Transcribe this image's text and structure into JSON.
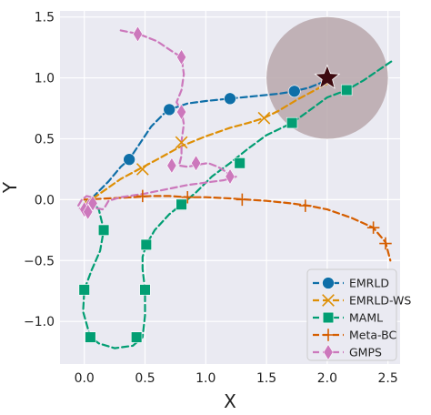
{
  "chart_data": {
    "type": "line",
    "xlabel": "X",
    "ylabel": "Y",
    "xlim": [
      -0.2,
      2.6
    ],
    "ylim": [
      -1.35,
      1.55
    ],
    "xticks": [
      0.0,
      0.5,
      1.0,
      1.5,
      2.0,
      2.5
    ],
    "xtick_labels": [
      "0.0",
      "0.5",
      "1.0",
      "1.5",
      "2.0",
      "2.5"
    ],
    "yticks": [
      -1.0,
      -0.5,
      0.0,
      0.5,
      1.0,
      1.5
    ],
    "ytick_labels": [
      "−1.0",
      "−0.5",
      "0.0",
      "0.5",
      "1.0",
      "1.5"
    ],
    "grid": true,
    "background": "#eaeaf2",
    "legend_position": "bottom-right",
    "goal": {
      "x": 2.0,
      "y": 1.0,
      "radius": 0.5,
      "fill": "#b9a7ab",
      "marker": "star",
      "marker_color": "#3d0a10"
    },
    "series": [
      {
        "name": "EMRLD",
        "color": "#0f6fa8",
        "marker": "circle",
        "path": [
          [
            0.0,
            -0.03
          ],
          [
            0.08,
            0.03
          ],
          [
            0.2,
            0.15
          ],
          [
            0.3,
            0.27
          ],
          [
            0.37,
            0.33
          ],
          [
            0.45,
            0.45
          ],
          [
            0.55,
            0.6
          ],
          [
            0.65,
            0.7
          ],
          [
            0.7,
            0.74
          ],
          [
            0.85,
            0.79
          ],
          [
            1.0,
            0.81
          ],
          [
            1.2,
            0.83
          ],
          [
            1.4,
            0.85
          ],
          [
            1.6,
            0.87
          ],
          [
            1.73,
            0.89
          ],
          [
            1.85,
            0.92
          ],
          [
            2.0,
            0.98
          ]
        ],
        "markers": [
          [
            0.37,
            0.33
          ],
          [
            0.7,
            0.74
          ],
          [
            1.2,
            0.83
          ],
          [
            1.73,
            0.89
          ]
        ]
      },
      {
        "name": "EMRLD-WS",
        "color": "#de8f05",
        "marker": "x",
        "path": [
          [
            0.0,
            -0.03
          ],
          [
            0.1,
            0.03
          ],
          [
            0.2,
            0.1
          ],
          [
            0.3,
            0.17
          ],
          [
            0.45,
            0.25
          ],
          [
            0.6,
            0.33
          ],
          [
            0.8,
            0.44
          ],
          [
            1.0,
            0.52
          ],
          [
            1.2,
            0.59
          ],
          [
            1.35,
            0.63
          ],
          [
            1.48,
            0.67
          ],
          [
            1.6,
            0.73
          ],
          [
            1.75,
            0.82
          ],
          [
            1.9,
            0.9
          ],
          [
            2.05,
            0.98
          ]
        ],
        "markers": [
          [
            0.48,
            0.25
          ],
          [
            0.8,
            0.47
          ],
          [
            1.48,
            0.67
          ]
        ]
      },
      {
        "name": "MAML",
        "color": "#029e73",
        "marker": "square",
        "path": [
          [
            0.05,
            0.0
          ],
          [
            0.12,
            -0.08
          ],
          [
            0.16,
            -0.25
          ],
          [
            0.13,
            -0.42
          ],
          [
            0.06,
            -0.58
          ],
          [
            0.0,
            -0.74
          ],
          [
            -0.01,
            -0.92
          ],
          [
            0.03,
            -1.06
          ],
          [
            0.05,
            -1.13
          ],
          [
            0.12,
            -1.18
          ],
          [
            0.25,
            -1.22
          ],
          [
            0.4,
            -1.2
          ],
          [
            0.48,
            -1.13
          ],
          [
            0.5,
            -0.95
          ],
          [
            0.5,
            -0.74
          ],
          [
            0.48,
            -0.57
          ],
          [
            0.48,
            -0.47
          ],
          [
            0.51,
            -0.37
          ],
          [
            0.58,
            -0.25
          ],
          [
            0.7,
            -0.12
          ],
          [
            0.8,
            -0.04
          ],
          [
            0.92,
            0.06
          ],
          [
            1.05,
            0.19
          ],
          [
            1.2,
            0.3
          ],
          [
            1.35,
            0.42
          ],
          [
            1.5,
            0.53
          ],
          [
            1.71,
            0.63
          ],
          [
            1.85,
            0.73
          ],
          [
            2.0,
            0.84
          ],
          [
            2.16,
            0.9
          ],
          [
            2.3,
            0.98
          ],
          [
            2.55,
            1.15
          ]
        ],
        "markers": [
          [
            0.16,
            -0.25
          ],
          [
            0.0,
            -0.74
          ],
          [
            0.05,
            -1.13
          ],
          [
            0.43,
            -1.13
          ],
          [
            0.5,
            -0.74
          ],
          [
            0.51,
            -0.37
          ],
          [
            0.8,
            -0.04
          ],
          [
            1.28,
            0.3
          ],
          [
            1.71,
            0.63
          ],
          [
            2.16,
            0.9
          ]
        ]
      },
      {
        "name": "Meta-BC",
        "color": "#d55e00",
        "marker": "plus",
        "path": [
          [
            0.0,
            0.0
          ],
          [
            0.2,
            0.01
          ],
          [
            0.4,
            0.02
          ],
          [
            0.55,
            0.03
          ],
          [
            0.7,
            0.03
          ],
          [
            0.85,
            0.02
          ],
          [
            1.0,
            0.02
          ],
          [
            1.2,
            0.01
          ],
          [
            1.35,
            0.0
          ],
          [
            1.5,
            -0.01
          ],
          [
            1.7,
            -0.03
          ],
          [
            1.85,
            -0.05
          ],
          [
            2.0,
            -0.08
          ],
          [
            2.2,
            -0.15
          ],
          [
            2.38,
            -0.23
          ],
          [
            2.48,
            -0.35
          ],
          [
            2.52,
            -0.5
          ]
        ],
        "markers": [
          [
            0.48,
            0.03
          ],
          [
            0.85,
            0.02
          ],
          [
            1.3,
            0.0
          ],
          [
            1.82,
            -0.05
          ],
          [
            2.38,
            -0.23
          ],
          [
            2.48,
            -0.36
          ]
        ]
      },
      {
        "name": "GMPS",
        "color": "#cc78bc",
        "marker": "diamond",
        "path": [
          [
            0.3,
            1.39
          ],
          [
            0.45,
            1.36
          ],
          [
            0.6,
            1.3
          ],
          [
            0.72,
            1.22
          ],
          [
            0.8,
            1.17
          ],
          [
            0.82,
            1.03
          ],
          [
            0.8,
            0.9
          ],
          [
            0.76,
            0.8
          ],
          [
            0.8,
            0.73
          ],
          [
            0.82,
            0.62
          ],
          [
            0.8,
            0.48
          ],
          [
            0.8,
            0.36
          ],
          [
            0.78,
            0.28
          ],
          [
            0.85,
            0.27
          ],
          [
            0.95,
            0.29
          ],
          [
            1.02,
            0.3
          ],
          [
            1.1,
            0.27
          ],
          [
            1.15,
            0.24
          ],
          [
            1.2,
            0.2
          ],
          [
            1.25,
            0.19
          ],
          [
            1.15,
            0.16
          ],
          [
            1.0,
            0.14
          ],
          [
            0.85,
            0.12
          ],
          [
            0.7,
            0.09
          ],
          [
            0.5,
            0.05
          ],
          [
            0.3,
            0.02
          ],
          [
            0.2,
            -0.01
          ],
          [
            0.17,
            -0.06
          ],
          [
            0.15,
            -0.08
          ],
          [
            0.1,
            -0.07
          ],
          [
            0.08,
            -0.02
          ],
          [
            0.06,
            0.02
          ],
          [
            0.02,
            0.03
          ],
          [
            -0.02,
            0.0
          ],
          [
            -0.05,
            -0.05
          ],
          [
            -0.02,
            -0.1
          ],
          [
            0.02,
            -0.08
          ],
          [
            0.06,
            -0.04
          ]
        ],
        "markers": [
          [
            0.44,
            1.36
          ],
          [
            0.8,
            1.17
          ],
          [
            0.8,
            0.72
          ],
          [
            0.92,
            0.3
          ],
          [
            0.72,
            0.28
          ],
          [
            1.2,
            0.19
          ],
          [
            0.04,
            -0.05
          ],
          [
            0.07,
            -0.03
          ],
          [
            0.0,
            -0.08
          ],
          [
            0.03,
            -0.1
          ]
        ]
      }
    ]
  }
}
